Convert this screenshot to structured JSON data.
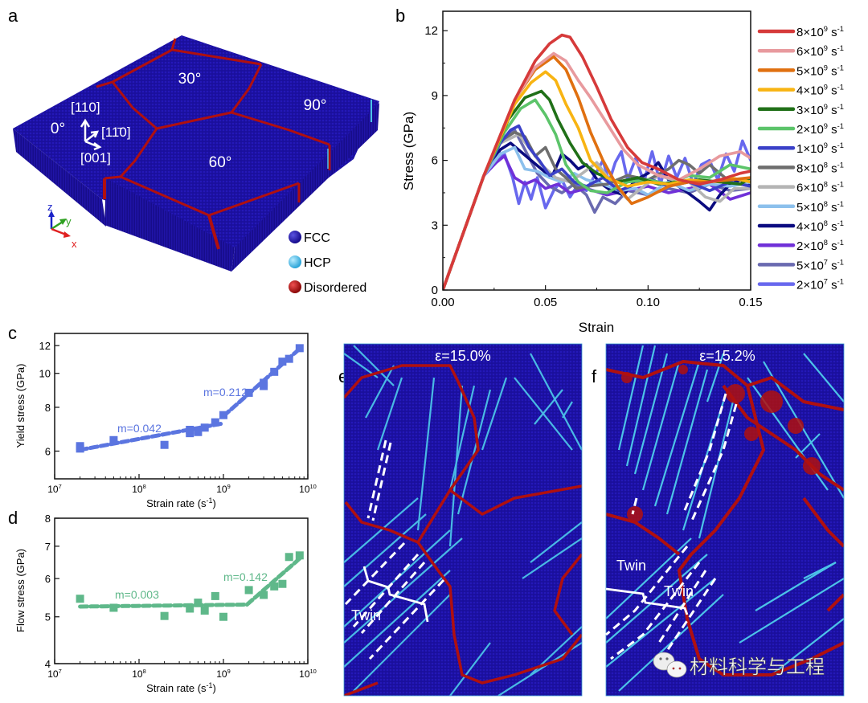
{
  "panels": {
    "a": {
      "label": "a",
      "grain_angles": [
        "30°",
        "90°",
        "0°",
        "60°"
      ],
      "orientation": {
        "up": "[110]",
        "right": "[11̄0]",
        "down": "[001]"
      },
      "axes": {
        "z": "z",
        "y": "y",
        "x": "x"
      },
      "legend": [
        {
          "label": "FCC",
          "color": "#1a12a8"
        },
        {
          "label": "HCP",
          "color": "#4cc3e8"
        },
        {
          "label": "Disordered",
          "color": "#b0100f"
        }
      ],
      "colors": {
        "fcc": "#1a0f9c",
        "boundary": "#b0100f",
        "hcp": "#4cc3e8"
      }
    },
    "e": {
      "label": "e",
      "strain_label": "ε=15.0%",
      "twin_label": "Twin"
    },
    "f": {
      "label": "f",
      "strain_label": "ε=15.2%",
      "twin_labels": [
        "Twin",
        "Twin"
      ]
    }
  },
  "watermark": {
    "icon": "wechat-icon",
    "text": "材料科学与工程"
  },
  "chart_data": [
    {
      "id": "b",
      "label": "b",
      "type": "line",
      "title": "",
      "xlabel": "Strain",
      "ylabel": "Stress (GPa)",
      "xlim": [
        0,
        0.15
      ],
      "ylim": [
        0,
        12.9
      ],
      "xticks": [
        0.0,
        0.05,
        0.1,
        0.15
      ],
      "xtick_labels": [
        "0.00",
        "0.05",
        "0.10",
        "0.15"
      ],
      "yticks": [
        0,
        3,
        6,
        9,
        12
      ],
      "ytick_labels": [
        "0",
        "3",
        "6",
        "9",
        "12"
      ],
      "legend_position": "right-outside",
      "series": [
        {
          "name": "8×10^9 s^-1",
          "base": "8×10",
          "exp": "9",
          "color": "#d63a3a",
          "peak_strain": 0.058,
          "peak_stress": 11.8,
          "flow": 5.2,
          "x": [
            0,
            0.02,
            0.035,
            0.045,
            0.052,
            0.058,
            0.062,
            0.068,
            0.075,
            0.082,
            0.09,
            0.097,
            0.105,
            0.115,
            0.125,
            0.135,
            0.145,
            0.15
          ],
          "y": [
            0,
            5.3,
            8.8,
            10.6,
            11.4,
            11.8,
            11.7,
            10.8,
            9.4,
            7.9,
            6.6,
            5.9,
            5.6,
            5.1,
            4.9,
            5.1,
            5.4,
            5.5
          ]
        },
        {
          "name": "6×10^9 s^-1",
          "base": "6×10",
          "exp": "9",
          "color": "#e89a9e",
          "peak_strain": 0.054,
          "peak_stress": 11.0,
          "flow": 6.2,
          "x": [
            0,
            0.02,
            0.035,
            0.045,
            0.054,
            0.06,
            0.066,
            0.072,
            0.08,
            0.088,
            0.095,
            0.105,
            0.115,
            0.125,
            0.135,
            0.145,
            0.15
          ],
          "y": [
            0,
            5.3,
            8.8,
            10.3,
            10.95,
            10.6,
            9.7,
            8.9,
            7.7,
            6.5,
            5.8,
            5.3,
            5.1,
            5.6,
            6.2,
            6.4,
            6.1
          ]
        },
        {
          "name": "5×10^9 s^-1",
          "base": "5×10",
          "exp": "9",
          "color": "#e07010",
          "peak_strain": 0.054,
          "peak_stress": 10.8,
          "flow": 4.5,
          "x": [
            0,
            0.02,
            0.035,
            0.045,
            0.054,
            0.06,
            0.066,
            0.072,
            0.078,
            0.085,
            0.092,
            0.1,
            0.11,
            0.12,
            0.13,
            0.14,
            0.15
          ],
          "y": [
            0,
            5.3,
            8.8,
            10.2,
            10.8,
            10.2,
            8.9,
            7.3,
            6.0,
            4.8,
            4.0,
            4.3,
            4.8,
            5.0,
            5.0,
            5.1,
            5.2
          ]
        },
        {
          "name": "4×10^9 s^-1",
          "base": "4×10",
          "exp": "9",
          "color": "#f8b412",
          "peak_strain": 0.05,
          "peak_stress": 10.1,
          "flow": 5.0,
          "x": [
            0,
            0.02,
            0.035,
            0.043,
            0.05,
            0.055,
            0.06,
            0.066,
            0.072,
            0.08,
            0.09,
            0.1,
            0.11,
            0.12,
            0.13,
            0.14,
            0.15
          ],
          "y": [
            0,
            5.3,
            8.6,
            9.6,
            10.1,
            9.7,
            8.6,
            7.5,
            6.0,
            5.2,
            4.8,
            5.0,
            4.9,
            5.1,
            5.0,
            5.2,
            5.0
          ]
        },
        {
          "name": "3×10^9 s^-1",
          "base": "3×10",
          "exp": "9",
          "color": "#207018",
          "peak_strain": 0.048,
          "peak_stress": 9.2,
          "flow": 5.0,
          "x": [
            0,
            0.02,
            0.032,
            0.04,
            0.048,
            0.052,
            0.056,
            0.062,
            0.068,
            0.075,
            0.085,
            0.095,
            0.105,
            0.115,
            0.125,
            0.135,
            0.145,
            0.15
          ],
          "y": [
            0,
            5.3,
            7.9,
            8.9,
            9.2,
            8.8,
            7.9,
            6.8,
            5.9,
            5.4,
            5.0,
            5.2,
            4.9,
            5.0,
            5.1,
            5.0,
            4.9,
            5.2
          ]
        },
        {
          "name": "2×10^9 s^-1",
          "base": "2×10",
          "exp": "9",
          "color": "#5cc46a",
          "peak_strain": 0.045,
          "peak_stress": 8.8,
          "flow": 5.2,
          "x": [
            0,
            0.02,
            0.03,
            0.038,
            0.045,
            0.05,
            0.055,
            0.06,
            0.066,
            0.072,
            0.08,
            0.09,
            0.1,
            0.11,
            0.12,
            0.13,
            0.14,
            0.15
          ],
          "y": [
            0,
            5.3,
            7.3,
            8.4,
            8.8,
            8.1,
            7.2,
            5.8,
            5.0,
            4.6,
            4.5,
            5.0,
            5.1,
            4.9,
            5.3,
            5.2,
            5.8,
            5.6
          ]
        },
        {
          "name": "1×10^9 s^-1",
          "base": "1×10",
          "exp": "9",
          "color": "#3a40c8",
          "peak_strain": 0.037,
          "peak_stress": 7.6,
          "flow": 5.0,
          "x": [
            0,
            0.02,
            0.028,
            0.033,
            0.037,
            0.042,
            0.047,
            0.052,
            0.058,
            0.064,
            0.07,
            0.078,
            0.086,
            0.094,
            0.102,
            0.11,
            0.12,
            0.13,
            0.14,
            0.15
          ],
          "y": [
            0,
            5.3,
            6.8,
            7.4,
            7.6,
            6.6,
            6.0,
            5.3,
            5.6,
            5.0,
            4.8,
            5.2,
            4.6,
            4.9,
            5.1,
            4.8,
            5.0,
            4.6,
            5.0,
            4.8
          ]
        },
        {
          "name": "8×10^8 s^-1",
          "base": "8×10",
          "exp": "8",
          "color": "#6e6e6e",
          "peak_strain": 0.035,
          "peak_stress": 7.3,
          "flow": 5.5,
          "x": [
            0,
            0.02,
            0.028,
            0.035,
            0.04,
            0.045,
            0.05,
            0.055,
            0.06,
            0.065,
            0.07,
            0.08,
            0.09,
            0.1,
            0.11,
            0.115,
            0.12,
            0.125,
            0.13,
            0.14,
            0.15
          ],
          "y": [
            0,
            5.3,
            6.9,
            7.3,
            7.1,
            6.2,
            6.6,
            5.6,
            5.2,
            4.7,
            4.8,
            4.9,
            5.3,
            5.1,
            5.6,
            6.0,
            5.8,
            5.4,
            5.8,
            5.0,
            4.8
          ]
        },
        {
          "name": "6×10^8 s^-1",
          "base": "6×10",
          "exp": "8",
          "color": "#b4b4b4",
          "peak_strain": 0.037,
          "peak_stress": 7.2,
          "flow": 4.9,
          "x": [
            0,
            0.02,
            0.028,
            0.037,
            0.042,
            0.048,
            0.055,
            0.062,
            0.068,
            0.075,
            0.082,
            0.09,
            0.098,
            0.105,
            0.112,
            0.12,
            0.128,
            0.135,
            0.142,
            0.15
          ],
          "y": [
            0,
            5.3,
            6.8,
            7.2,
            6.6,
            5.8,
            5.2,
            5.0,
            5.4,
            5.9,
            5.0,
            4.2,
            4.8,
            5.3,
            5.1,
            5.0,
            4.3,
            4.1,
            4.7,
            4.7
          ]
        },
        {
          "name": "5×10^8 s^-1",
          "base": "5×10",
          "exp": "8",
          "color": "#8cc0ec",
          "peak_strain": 0.035,
          "peak_stress": 6.6,
          "flow": 5.0,
          "x": [
            0,
            0.02,
            0.028,
            0.035,
            0.04,
            0.046,
            0.052,
            0.058,
            0.064,
            0.07,
            0.078,
            0.086,
            0.094,
            0.1,
            0.11,
            0.12,
            0.13,
            0.14,
            0.15
          ],
          "y": [
            0,
            5.3,
            6.3,
            6.6,
            5.6,
            5.5,
            5.2,
            5.0,
            5.4,
            5.1,
            4.9,
            4.6,
            4.7,
            4.4,
            5.0,
            4.6,
            4.9,
            4.8,
            5.0
          ]
        },
        {
          "name": "4×10^8 s^-1",
          "base": "4×10",
          "exp": "8",
          "color": "#0b0b80",
          "peak_strain": 0.033,
          "peak_stress": 6.8,
          "flow": 5.0,
          "x": [
            0,
            0.02,
            0.028,
            0.033,
            0.038,
            0.043,
            0.048,
            0.053,
            0.058,
            0.062,
            0.066,
            0.07,
            0.076,
            0.082,
            0.088,
            0.094,
            0.1,
            0.105,
            0.11,
            0.118,
            0.125,
            0.13,
            0.135,
            0.14,
            0.145,
            0.15
          ],
          "y": [
            0,
            5.3,
            6.5,
            6.8,
            6.4,
            6.0,
            5.6,
            5.2,
            6.3,
            6.0,
            5.6,
            5.8,
            5.0,
            4.6,
            4.4,
            5.1,
            5.4,
            5.9,
            5.1,
            4.6,
            4.1,
            3.7,
            4.4,
            4.9,
            5.1,
            4.8
          ]
        },
        {
          "name": "2×10^8 s^-1",
          "base": "2×10",
          "exp": "8",
          "color": "#7030d8",
          "peak_strain": 0.03,
          "peak_stress": 6.2,
          "flow": 4.6,
          "x": [
            0,
            0.02,
            0.026,
            0.03,
            0.035,
            0.04,
            0.045,
            0.05,
            0.056,
            0.062,
            0.07,
            0.08,
            0.09,
            0.1,
            0.11,
            0.12,
            0.13,
            0.14,
            0.15
          ],
          "y": [
            0,
            5.3,
            5.9,
            6.2,
            5.2,
            4.9,
            5.1,
            4.7,
            4.9,
            4.5,
            4.7,
            4.4,
            4.6,
            4.8,
            4.5,
            4.7,
            4.9,
            4.2,
            4.5
          ]
        },
        {
          "name": "5×10^7 s^-1",
          "base": "5×10",
          "exp": "7",
          "color": "#6a6ab0",
          "peak_strain": 0.035,
          "peak_stress": 7.4,
          "flow": 4.6,
          "x": [
            0,
            0.02,
            0.028,
            0.035,
            0.04,
            0.046,
            0.052,
            0.058,
            0.064,
            0.07,
            0.074,
            0.078,
            0.084,
            0.09,
            0.1,
            0.11,
            0.12,
            0.13,
            0.14,
            0.15
          ],
          "y": [
            0,
            5.3,
            6.9,
            7.4,
            6.5,
            5.4,
            4.8,
            4.5,
            4.9,
            4.4,
            3.6,
            4.3,
            4.0,
            4.6,
            4.4,
            4.7,
            4.5,
            4.9,
            4.6,
            4.7
          ]
        },
        {
          "name": "2×10^7 s^-1",
          "base": "2×10",
          "exp": "7",
          "color": "#6868ee",
          "peak_strain": 0.03,
          "peak_stress": 6.3,
          "flow": 5.3,
          "x": [
            0,
            0.02,
            0.026,
            0.03,
            0.034,
            0.037,
            0.04,
            0.043,
            0.046,
            0.05,
            0.054,
            0.058,
            0.062,
            0.066,
            0.07,
            0.074,
            0.078,
            0.081,
            0.084,
            0.087,
            0.09,
            0.094,
            0.098,
            0.102,
            0.106,
            0.11,
            0.114,
            0.118,
            0.122,
            0.126,
            0.13,
            0.134,
            0.138,
            0.142,
            0.146,
            0.15
          ],
          "y": [
            0,
            5.3,
            5.9,
            6.3,
            5.2,
            4.0,
            5.0,
            4.2,
            5.2,
            3.8,
            4.6,
            5.1,
            4.3,
            4.9,
            4.6,
            5.3,
            6.0,
            5.0,
            5.9,
            6.4,
            5.1,
            6.1,
            5.0,
            6.4,
            4.9,
            6.2,
            5.2,
            6.1,
            4.9,
            5.8,
            6.0,
            5.1,
            6.3,
            5.5,
            6.9,
            6.0
          ]
        }
      ]
    },
    {
      "id": "c",
      "label": "c",
      "type": "scatter",
      "xlabel": "Strain rate (s^-1)",
      "ylabel": "Yield stress (GPa)",
      "xscale": "log",
      "yscale": "log",
      "xlim": [
        10000000.0,
        10000000000.0
      ],
      "ylim": [
        5,
        13
      ],
      "xtick_exps": [
        7,
        8,
        9,
        10
      ],
      "yticks": [
        6,
        8,
        10,
        12
      ],
      "ytick_labels": [
        "6",
        "8",
        "10",
        "12"
      ],
      "color": "#5b75e0",
      "points": [
        [
          20000000.0,
          6.2
        ],
        [
          20000000.0,
          6.1
        ],
        [
          50000000.0,
          6.45
        ],
        [
          200000000.0,
          6.25
        ],
        [
          400000000.0,
          6.75
        ],
        [
          400000000.0,
          6.9
        ],
        [
          500000000.0,
          6.8
        ],
        [
          600000000.0,
          7.0
        ],
        [
          800000000.0,
          7.25
        ],
        [
          1000000000.0,
          7.6
        ],
        [
          2000000000.0,
          8.8
        ],
        [
          3000000000.0,
          9.4
        ],
        [
          3000000000.0,
          9.2
        ],
        [
          4000000000.0,
          10.1
        ],
        [
          5000000000.0,
          10.8
        ],
        [
          6000000000.0,
          11.0
        ],
        [
          8000000000.0,
          11.8
        ]
      ],
      "fits": [
        {
          "label": "m=0.042",
          "x": [
            20000000.0,
            1000000000.0
          ],
          "y": [
            6.05,
            7.2
          ]
        },
        {
          "label": "m=0.212",
          "x": [
            1000000000.0,
            8000000000.0
          ],
          "y": [
            7.55,
            11.75
          ]
        }
      ]
    },
    {
      "id": "d",
      "label": "d",
      "type": "scatter",
      "xlabel": "Strain rate (s^-1)",
      "ylabel": "Flow stress (GPa)",
      "xscale": "log",
      "yscale": "log",
      "xlim": [
        10000000.0,
        10000000000.0
      ],
      "ylim": [
        4,
        8
      ],
      "xtick_exps": [
        7,
        8,
        9,
        10
      ],
      "yticks": [
        4,
        5,
        6,
        7,
        8
      ],
      "ytick_labels": [
        "4",
        "5",
        "6",
        "7",
        "8"
      ],
      "color": "#5fb88a",
      "points": [
        [
          20000000.0,
          5.45
        ],
        [
          50000000.0,
          5.22
        ],
        [
          200000000.0,
          5.02
        ],
        [
          400000000.0,
          5.2
        ],
        [
          500000000.0,
          5.35
        ],
        [
          600000000.0,
          5.15
        ],
        [
          800000000.0,
          5.52
        ],
        [
          1000000000.0,
          5.0
        ],
        [
          2000000000.0,
          5.68
        ],
        [
          3000000000.0,
          5.55
        ],
        [
          4000000000.0,
          5.78
        ],
        [
          5000000000.0,
          5.85
        ],
        [
          6000000000.0,
          6.65
        ],
        [
          8000000000.0,
          6.7
        ]
      ],
      "fits": [
        {
          "label": "m=0.003",
          "x": [
            20000000.0,
            1900000000.0
          ],
          "y": [
            5.25,
            5.3
          ]
        },
        {
          "label": "m=0.142",
          "x": [
            1900000000.0,
            8000000000.0
          ],
          "y": [
            5.3,
            6.6
          ]
        }
      ]
    }
  ]
}
